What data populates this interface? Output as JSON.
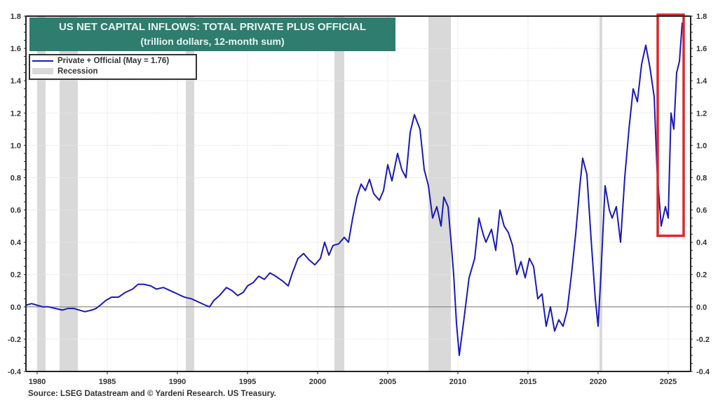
{
  "chart_data": {
    "type": "line",
    "title": "US NET CAPITAL INFLOWS: TOTAL PRIVATE PLUS OFFICIAL",
    "subtitle": "(trillion dollars, 12-month sum)",
    "xlabel": "",
    "ylabel": "",
    "xlim": [
      1979.2,
      2026.6
    ],
    "ylim": [
      -0.4,
      1.8
    ],
    "x_ticks": [
      1980,
      1985,
      1990,
      1995,
      2000,
      2005,
      2010,
      2015,
      2020,
      2025
    ],
    "y_ticks": [
      -0.4,
      -0.2,
      0.0,
      0.2,
      0.4,
      0.6,
      0.8,
      1.0,
      1.2,
      1.4,
      1.6,
      1.8
    ],
    "y_tick_labels": [
      "-0.4",
      "-0.2",
      "0.0",
      "0.2",
      "0.4",
      "0.6",
      "0.8",
      "1.0",
      "1.2",
      "1.4",
      "1.6",
      "1.8"
    ],
    "grid": true,
    "legend_position": "top-left",
    "series": [
      {
        "name": "Private + Official (May = 1.76)",
        "color": "#1a1ab8",
        "points": [
          [
            1979.2,
            0.01
          ],
          [
            1979.6,
            0.02
          ],
          [
            1980.0,
            0.01
          ],
          [
            1980.4,
            0.0
          ],
          [
            1980.8,
            0.0
          ],
          [
            1981.3,
            -0.01
          ],
          [
            1981.8,
            -0.02
          ],
          [
            1982.2,
            -0.01
          ],
          [
            1982.6,
            -0.01
          ],
          [
            1983.0,
            -0.02
          ],
          [
            1983.4,
            -0.03
          ],
          [
            1983.9,
            -0.02
          ],
          [
            1984.2,
            -0.01
          ],
          [
            1984.5,
            0.01
          ],
          [
            1984.9,
            0.04
          ],
          [
            1985.3,
            0.06
          ],
          [
            1985.8,
            0.06
          ],
          [
            1986.3,
            0.09
          ],
          [
            1986.8,
            0.11
          ],
          [
            1987.2,
            0.14
          ],
          [
            1987.6,
            0.14
          ],
          [
            1988.1,
            0.13
          ],
          [
            1988.5,
            0.11
          ],
          [
            1989.0,
            0.12
          ],
          [
            1989.5,
            0.1
          ],
          [
            1990.0,
            0.08
          ],
          [
            1990.5,
            0.06
          ],
          [
            1991.0,
            0.05
          ],
          [
            1991.5,
            0.03
          ],
          [
            1992.0,
            0.01
          ],
          [
            1992.3,
            0.0
          ],
          [
            1992.6,
            0.04
          ],
          [
            1993.0,
            0.07
          ],
          [
            1993.5,
            0.12
          ],
          [
            1993.9,
            0.1
          ],
          [
            1994.3,
            0.07
          ],
          [
            1994.7,
            0.09
          ],
          [
            1995.0,
            0.13
          ],
          [
            1995.4,
            0.15
          ],
          [
            1995.8,
            0.19
          ],
          [
            1996.2,
            0.17
          ],
          [
            1996.6,
            0.21
          ],
          [
            1997.0,
            0.19
          ],
          [
            1997.5,
            0.16
          ],
          [
            1997.9,
            0.13
          ],
          [
            1998.2,
            0.21
          ],
          [
            1998.6,
            0.3
          ],
          [
            1999.0,
            0.33
          ],
          [
            1999.4,
            0.29
          ],
          [
            1999.8,
            0.26
          ],
          [
            2000.2,
            0.3
          ],
          [
            2000.5,
            0.4
          ],
          [
            2000.8,
            0.32
          ],
          [
            2001.1,
            0.38
          ],
          [
            2001.5,
            0.39
          ],
          [
            2001.9,
            0.43
          ],
          [
            2002.2,
            0.4
          ],
          [
            2002.5,
            0.55
          ],
          [
            2002.8,
            0.68
          ],
          [
            2003.1,
            0.76
          ],
          [
            2003.4,
            0.72
          ],
          [
            2003.7,
            0.79
          ],
          [
            2004.0,
            0.7
          ],
          [
            2004.4,
            0.66
          ],
          [
            2004.7,
            0.72
          ],
          [
            2005.0,
            0.88
          ],
          [
            2005.3,
            0.78
          ],
          [
            2005.7,
            0.95
          ],
          [
            2006.0,
            0.85
          ],
          [
            2006.3,
            0.8
          ],
          [
            2006.6,
            1.08
          ],
          [
            2006.9,
            1.19
          ],
          [
            2007.3,
            1.1
          ],
          [
            2007.6,
            0.85
          ],
          [
            2007.9,
            0.75
          ],
          [
            2008.2,
            0.55
          ],
          [
            2008.5,
            0.62
          ],
          [
            2008.8,
            0.5
          ],
          [
            2009.0,
            0.68
          ],
          [
            2009.3,
            0.62
          ],
          [
            2009.5,
            0.42
          ],
          [
            2009.7,
            0.2
          ],
          [
            2009.9,
            -0.1
          ],
          [
            2010.1,
            -0.3
          ],
          [
            2010.4,
            -0.1
          ],
          [
            2010.8,
            0.18
          ],
          [
            2011.2,
            0.3
          ],
          [
            2011.5,
            0.55
          ],
          [
            2011.8,
            0.45
          ],
          [
            2012.0,
            0.4
          ],
          [
            2012.4,
            0.48
          ],
          [
            2012.7,
            0.35
          ],
          [
            2013.0,
            0.6
          ],
          [
            2013.3,
            0.5
          ],
          [
            2013.6,
            0.46
          ],
          [
            2013.9,
            0.38
          ],
          [
            2014.2,
            0.2
          ],
          [
            2014.5,
            0.28
          ],
          [
            2014.8,
            0.18
          ],
          [
            2015.1,
            0.3
          ],
          [
            2015.4,
            0.25
          ],
          [
            2015.7,
            0.05
          ],
          [
            2016.0,
            0.08
          ],
          [
            2016.3,
            -0.12
          ],
          [
            2016.6,
            0.0
          ],
          [
            2016.9,
            -0.15
          ],
          [
            2017.2,
            -0.08
          ],
          [
            2017.5,
            -0.12
          ],
          [
            2017.8,
            -0.02
          ],
          [
            2018.1,
            0.2
          ],
          [
            2018.4,
            0.45
          ],
          [
            2018.7,
            0.75
          ],
          [
            2018.9,
            0.92
          ],
          [
            2019.2,
            0.82
          ],
          [
            2019.5,
            0.42
          ],
          [
            2019.8,
            0.05
          ],
          [
            2020.0,
            -0.12
          ],
          [
            2020.2,
            0.2
          ],
          [
            2020.5,
            0.75
          ],
          [
            2020.8,
            0.6
          ],
          [
            2021.0,
            0.55
          ],
          [
            2021.3,
            0.62
          ],
          [
            2021.6,
            0.4
          ],
          [
            2021.9,
            0.8
          ],
          [
            2022.2,
            1.1
          ],
          [
            2022.5,
            1.35
          ],
          [
            2022.8,
            1.27
          ],
          [
            2023.1,
            1.5
          ],
          [
            2023.4,
            1.62
          ],
          [
            2023.7,
            1.48
          ],
          [
            2024.0,
            1.3
          ],
          [
            2024.2,
            0.85
          ],
          [
            2024.5,
            0.5
          ],
          [
            2024.8,
            0.62
          ],
          [
            2025.0,
            0.55
          ],
          [
            2025.2,
            1.2
          ],
          [
            2025.4,
            1.1
          ],
          [
            2025.6,
            1.45
          ],
          [
            2025.8,
            1.52
          ],
          [
            2026.0,
            1.76
          ]
        ]
      }
    ],
    "recessions": [
      [
        1980.0,
        1980.6
      ],
      [
        1981.6,
        1982.9
      ],
      [
        1990.6,
        1991.2
      ],
      [
        2001.2,
        2001.9
      ],
      [
        2007.9,
        2009.5
      ],
      [
        2020.1,
        2020.3
      ]
    ],
    "annotations": [
      {
        "type": "highlight-box",
        "color": "#d62a2a",
        "x_range": [
          2024.25,
          2026.1
        ],
        "y_range": [
          0.44,
          1.8
        ]
      }
    ]
  },
  "legend": {
    "series_label": "Private + Official (May = 1.76)",
    "recession_label": "Recession"
  },
  "colors": {
    "title_bg": "#2e7d6e",
    "line": "#1a1ab8",
    "recession": "#d9d9d9",
    "highlight": "#d62a2a"
  },
  "source": "Source: LSEG Datastream and © Yardeni Research. US Treasury."
}
